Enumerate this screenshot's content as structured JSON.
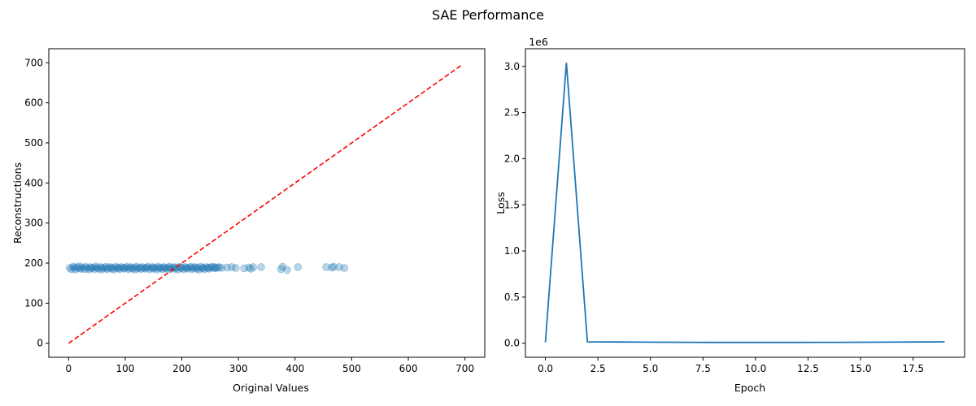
{
  "figure": {
    "title": "SAE Performance"
  },
  "chart_data": [
    {
      "type": "scatter",
      "xlabel": "Original Values",
      "ylabel": "Reconstructions",
      "xlim": [
        -35,
        735
      ],
      "ylim": [
        -35,
        735
      ],
      "xticks": [
        0,
        100,
        200,
        300,
        400,
        500,
        600,
        700
      ],
      "yticks": [
        0,
        100,
        200,
        300,
        400,
        500,
        600,
        700
      ],
      "grid": false,
      "point_color": "#1f77b4",
      "point_alpha": 0.3,
      "points": [
        [
          2,
          188
        ],
        [
          5,
          185
        ],
        [
          8,
          191
        ],
        [
          10,
          189
        ],
        [
          12,
          184
        ],
        [
          15,
          190
        ],
        [
          18,
          187
        ],
        [
          20,
          192
        ],
        [
          22,
          186
        ],
        [
          25,
          189
        ],
        [
          28,
          185
        ],
        [
          30,
          191
        ],
        [
          33,
          188
        ],
        [
          36,
          184
        ],
        [
          38,
          190
        ],
        [
          40,
          187
        ],
        [
          43,
          189
        ],
        [
          46,
          185
        ],
        [
          48,
          192
        ],
        [
          50,
          188
        ],
        [
          53,
          186
        ],
        [
          56,
          190
        ],
        [
          58,
          184
        ],
        [
          60,
          189
        ],
        [
          63,
          187
        ],
        [
          66,
          191
        ],
        [
          68,
          185
        ],
        [
          70,
          188
        ],
        [
          73,
          190
        ],
        [
          76,
          186
        ],
        [
          78,
          189
        ],
        [
          80,
          184
        ],
        [
          83,
          191
        ],
        [
          86,
          187
        ],
        [
          88,
          189
        ],
        [
          90,
          185
        ],
        [
          93,
          190
        ],
        [
          96,
          188
        ],
        [
          98,
          186
        ],
        [
          100,
          189
        ],
        [
          103,
          191
        ],
        [
          106,
          185
        ],
        [
          108,
          188
        ],
        [
          110,
          190
        ],
        [
          113,
          186
        ],
        [
          116,
          189
        ],
        [
          118,
          184
        ],
        [
          120,
          191
        ],
        [
          123,
          187
        ],
        [
          126,
          189
        ],
        [
          128,
          185
        ],
        [
          130,
          190
        ],
        [
          133,
          188
        ],
        [
          136,
          186
        ],
        [
          138,
          189
        ],
        [
          140,
          191
        ],
        [
          143,
          185
        ],
        [
          146,
          188
        ],
        [
          148,
          190
        ],
        [
          150,
          186
        ],
        [
          153,
          189
        ],
        [
          156,
          184
        ],
        [
          158,
          191
        ],
        [
          160,
          187
        ],
        [
          163,
          189
        ],
        [
          166,
          185
        ],
        [
          168,
          190
        ],
        [
          170,
          188
        ],
        [
          173,
          186
        ],
        [
          176,
          189
        ],
        [
          178,
          191
        ],
        [
          180,
          185
        ],
        [
          183,
          188
        ],
        [
          186,
          190
        ],
        [
          188,
          186
        ],
        [
          190,
          189
        ],
        [
          193,
          184
        ],
        [
          196,
          191
        ],
        [
          198,
          187
        ],
        [
          200,
          189
        ],
        [
          203,
          185
        ],
        [
          206,
          190
        ],
        [
          208,
          188
        ],
        [
          210,
          186
        ],
        [
          213,
          189
        ],
        [
          216,
          191
        ],
        [
          218,
          185
        ],
        [
          220,
          188
        ],
        [
          223,
          190
        ],
        [
          226,
          186
        ],
        [
          228,
          189
        ],
        [
          230,
          184
        ],
        [
          233,
          191
        ],
        [
          236,
          187
        ],
        [
          238,
          189
        ],
        [
          240,
          185
        ],
        [
          243,
          190
        ],
        [
          246,
          188
        ],
        [
          248,
          186
        ],
        [
          250,
          189
        ],
        [
          253,
          191
        ],
        [
          256,
          188
        ],
        [
          258,
          190
        ],
        [
          260,
          187
        ],
        [
          263,
          189
        ],
        [
          266,
          190
        ],
        [
          270,
          188
        ],
        [
          280,
          189
        ],
        [
          288,
          190
        ],
        [
          295,
          188
        ],
        [
          310,
          187
        ],
        [
          318,
          189
        ],
        [
          322,
          186
        ],
        [
          326,
          190
        ],
        [
          340,
          190
        ],
        [
          375,
          185
        ],
        [
          378,
          191
        ],
        [
          386,
          183
        ],
        [
          405,
          190
        ],
        [
          455,
          190
        ],
        [
          465,
          189
        ],
        [
          468,
          191
        ],
        [
          478,
          190
        ],
        [
          487,
          188
        ]
      ],
      "reference_line": {
        "x": [
          0,
          695
        ],
        "y": [
          0,
          695
        ],
        "color": "#ff0000",
        "style": "dashed"
      }
    },
    {
      "type": "line",
      "xlabel": "Epoch",
      "ylabel": "Loss",
      "offset_label": "1e6",
      "xlim": [
        -0.95,
        19.95
      ],
      "ylim": [
        -0.152,
        3.192
      ],
      "xticks": [
        0,
        2.5,
        5,
        7.5,
        10,
        12.5,
        15,
        17.5
      ],
      "xtick_labels": [
        "0.0",
        "2.5",
        "5.0",
        "7.5",
        "10.0",
        "12.5",
        "15.0",
        "17.5"
      ],
      "yticks": [
        0,
        0.5,
        1,
        1.5,
        2,
        2.5,
        3
      ],
      "ytick_labels": [
        "0.0",
        "0.5",
        "1.0",
        "1.5",
        "2.0",
        "2.5",
        "3.0"
      ],
      "grid": false,
      "line_color": "#1f77b4",
      "x": [
        0,
        1,
        2,
        3,
        4,
        5,
        6,
        7,
        8,
        9,
        10,
        11,
        12,
        13,
        14,
        15,
        16,
        17,
        18,
        19
      ],
      "values": [
        0.01,
        3.04,
        0.015,
        0.014,
        0.013,
        0.012,
        0.011,
        0.01,
        0.009,
        0.009,
        0.009,
        0.009,
        0.009,
        0.01,
        0.01,
        0.011,
        0.012,
        0.013,
        0.014,
        0.015
      ]
    }
  ]
}
